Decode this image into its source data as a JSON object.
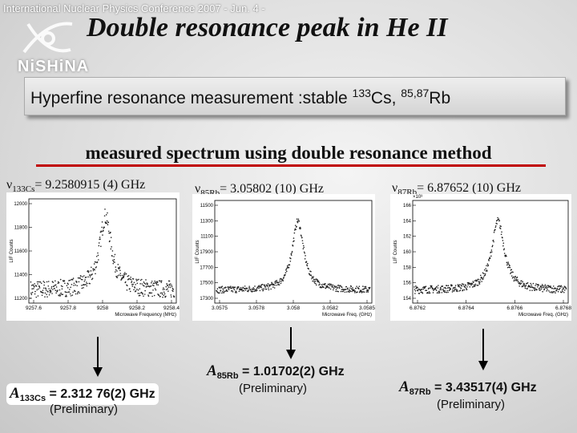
{
  "header": {
    "conference": "International Nuclear Physics Conference 2007 - Jun. 4 -",
    "logo": "NiSHiNA"
  },
  "title": "Double resonance peak in He II",
  "subtitle": {
    "text": "Hyperfine resonance measurement :stable ",
    "sup1": "133",
    "mid": "Cs, ",
    "sup2": "85,87",
    "end": "Rb"
  },
  "heading": "measured spectrum using double resonance method",
  "panels": [
    {
      "symbol": "ν",
      "sub": "133Cs",
      "value": "= 9.2580915 (4) GHz",
      "ylabel": "LIF Counts",
      "exponent": "",
      "yticks": [
        "12000",
        "11800",
        "11600",
        "11400",
        "11200"
      ],
      "xticks": [
        "9257.6",
        "9257.8",
        "9258",
        "9258.2",
        "9258.4"
      ],
      "xlabel": "Microwave Frequency (MHz)",
      "result": {
        "symbol": "A",
        "sub": "133Cs",
        "value": " = 2.312 76(2) GHz",
        "note": "(Preliminary)"
      }
    },
    {
      "symbol": "ν",
      "sub": "85Rb",
      "value": "= 3.05802 (10) GHz",
      "ylabel": "LIF Counts",
      "exponent": "",
      "yticks": [
        "11500",
        "11300",
        "11100",
        "17900",
        "17700",
        "17500",
        "17300"
      ],
      "xticks": [
        "3.0575",
        "3.0578",
        "3.058",
        "3.0582",
        "3.0585"
      ],
      "xlabel": "Microwave Freq. (GHz)",
      "result": {
        "symbol": "A",
        "sub": "85Rb",
        "value": " = 1.01702(2) GHz",
        "note": "(Preliminary)"
      }
    },
    {
      "symbol": "ν",
      "sub": "87Rb",
      "value": "= 6.87652 (10) GHz",
      "ylabel": "LIF Counts",
      "exponent": "×10³",
      "yticks": [
        "166",
        "164",
        "162",
        "160",
        "158",
        "156",
        "154"
      ],
      "xticks": [
        "6.8762",
        "6.8764",
        "6.8766",
        "6.8768"
      ],
      "xlabel": "Microwave Freq. (GHz)",
      "result": {
        "symbol": "A",
        "sub": "87Rb",
        "value": " = 3.43517(4) GHz",
        "note": "(Preliminary)"
      }
    }
  ]
}
